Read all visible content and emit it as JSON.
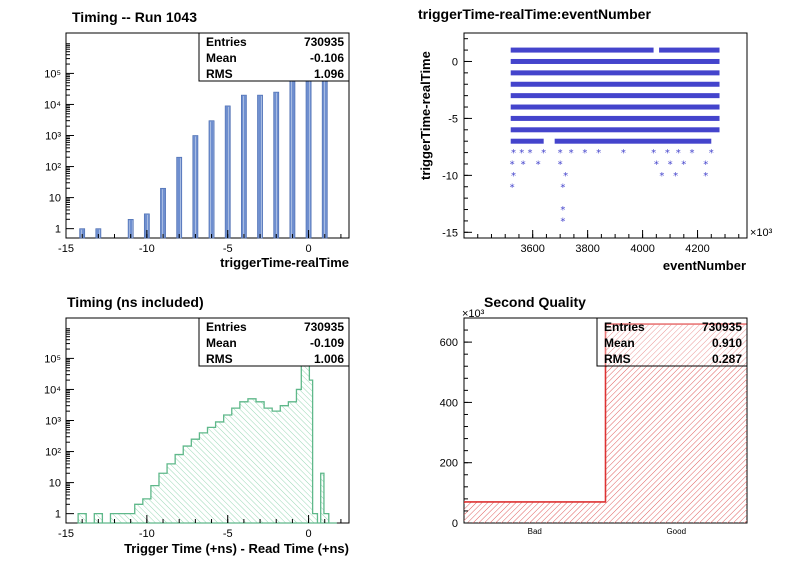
{
  "chart_data": [
    {
      "type": "bar",
      "title": "Timing -- Run 1043",
      "xlabel": "triggerTime-realTime",
      "ylabel": "",
      "yscale": "log",
      "xlim": [
        -15,
        2.5
      ],
      "ylim": [
        0.5,
        2000000
      ],
      "x_ticks": [
        "-15",
        "-10",
        "-5",
        "0"
      ],
      "y_ticks": [
        "1",
        "10",
        "10²",
        "10³",
        "10⁴",
        "10⁵"
      ],
      "stats": {
        "entries_label": "Entries",
        "entries": "730935",
        "mean_label": "Mean",
        "mean": "-0.106",
        "rms_label": "RMS",
        "rms": "1.096"
      },
      "colors": {
        "bar": "#6f8fcf",
        "hatch": "#ffffff"
      },
      "x": [
        -14,
        -13,
        -11,
        -10,
        -9,
        -8,
        -7,
        -6,
        -5,
        -4,
        -3,
        -2,
        -1,
        0,
        1
      ],
      "values": [
        1,
        1,
        2,
        3,
        20,
        200,
        1000,
        3000,
        9000,
        20000,
        20000,
        25000,
        80000,
        600000,
        300000
      ]
    },
    {
      "type": "scatter",
      "title": "triggerTime-realTime:eventNumber",
      "xlabel": "eventNumber",
      "ylabel": "triggerTime-realTime",
      "xlim": [
        3350,
        4380
      ],
      "ylim": [
        -15.5,
        2.5
      ],
      "x_ticks": [
        "3600",
        "3800",
        "4000",
        "4200"
      ],
      "x_multiplier": "×10³",
      "y_ticks": [
        "-15",
        "-10",
        "-5",
        "0"
      ],
      "colors": {
        "marker": "#4444cc"
      },
      "dense_rows": [
        {
          "y": 1,
          "x_ranges": [
            [
              3520,
              4040
            ],
            [
              4060,
              4280
            ]
          ]
        },
        {
          "y": 0,
          "x_ranges": [
            [
              3520,
              4280
            ]
          ]
        },
        {
          "y": -1,
          "x_ranges": [
            [
              3520,
              4280
            ]
          ]
        },
        {
          "y": -2,
          "x_ranges": [
            [
              3520,
              4280
            ]
          ]
        },
        {
          "y": -3,
          "x_ranges": [
            [
              3520,
              4280
            ]
          ]
        },
        {
          "y": -4,
          "x_ranges": [
            [
              3520,
              4280
            ]
          ]
        },
        {
          "y": -5,
          "x_ranges": [
            [
              3520,
              4280
            ]
          ]
        },
        {
          "y": -6,
          "x_ranges": [
            [
              3520,
              4280
            ]
          ]
        },
        {
          "y": -7,
          "x_ranges": [
            [
              3520,
              3640
            ],
            [
              3680,
              4250
            ]
          ]
        }
      ],
      "sparse_points": [
        [
          3530,
          -8
        ],
        [
          3560,
          -8
        ],
        [
          3590,
          -8
        ],
        [
          3640,
          -8
        ],
        [
          3700,
          -8
        ],
        [
          3740,
          -8
        ],
        [
          3790,
          -8
        ],
        [
          3840,
          -8
        ],
        [
          3930,
          -8
        ],
        [
          4040,
          -8
        ],
        [
          4090,
          -8
        ],
        [
          4130,
          -8
        ],
        [
          4180,
          -8
        ],
        [
          4250,
          -8
        ],
        [
          3525,
          -9
        ],
        [
          3565,
          -9
        ],
        [
          3620,
          -9
        ],
        [
          3700,
          -9
        ],
        [
          4050,
          -9
        ],
        [
          4100,
          -9
        ],
        [
          4150,
          -9
        ],
        [
          4230,
          -9
        ],
        [
          3530,
          -10
        ],
        [
          3720,
          -10
        ],
        [
          4070,
          -10
        ],
        [
          4120,
          -10
        ],
        [
          4230,
          -10
        ],
        [
          3525,
          -11
        ],
        [
          3710,
          -11
        ],
        [
          3710,
          -13
        ],
        [
          3710,
          -14
        ]
      ]
    },
    {
      "type": "area",
      "title": "Timing (ns included)",
      "xlabel": "Trigger Time (+ns) - Read Time (+ns)",
      "ylabel": "",
      "yscale": "log",
      "xlim": [
        -15,
        2.5
      ],
      "ylim": [
        0.5,
        2000000
      ],
      "x_ticks": [
        "-15",
        "-10",
        "-5",
        "0"
      ],
      "y_ticks": [
        "1",
        "10",
        "10²",
        "10³",
        "10⁴",
        "10⁵"
      ],
      "stats": {
        "entries_label": "Entries",
        "entries": "730935",
        "mean_label": "Mean",
        "mean": "-0.109",
        "rms_label": "RMS",
        "rms": "1.006"
      },
      "colors": {
        "line": "#5fb88a",
        "hatch": "#8fd4ae"
      },
      "x": [
        -14,
        -13.5,
        -13,
        -12.5,
        -12,
        -11.5,
        -11,
        -10.5,
        -10,
        -9.5,
        -9,
        -8.5,
        -8,
        -7.5,
        -7,
        -6.5,
        -6,
        -5.5,
        -5,
        -4.5,
        -4,
        -3.5,
        -3,
        -2.5,
        -2,
        -1.5,
        -1,
        -0.5,
        -0.2,
        0,
        0.3,
        0.5,
        0.8,
        1.0,
        1.2,
        1.5
      ],
      "values": [
        1,
        0.5,
        1,
        0.5,
        1,
        1,
        1,
        2,
        3,
        8,
        20,
        40,
        80,
        150,
        250,
        400,
        600,
        900,
        1500,
        2500,
        4000,
        5000,
        4000,
        2500,
        2000,
        3000,
        4000,
        10000,
        200000,
        600000,
        20000,
        1,
        0.5,
        20,
        1,
        0.5
      ]
    },
    {
      "type": "bar",
      "title": "Second Quality",
      "xlabel": "",
      "ylabel": "",
      "categories": [
        "Bad",
        "Good"
      ],
      "values": [
        70,
        660
      ],
      "y_multiplier": "×10³",
      "ylim": [
        0,
        680
      ],
      "y_ticks": [
        "0",
        "200",
        "400",
        "600"
      ],
      "stats": {
        "entries_label": "Entries",
        "entries": "730935",
        "mean_label": "Mean",
        "mean": "0.910",
        "rms_label": "RMS",
        "rms": "0.287"
      },
      "colors": {
        "line": "#dd3333",
        "hatch": "#e06060"
      }
    }
  ]
}
